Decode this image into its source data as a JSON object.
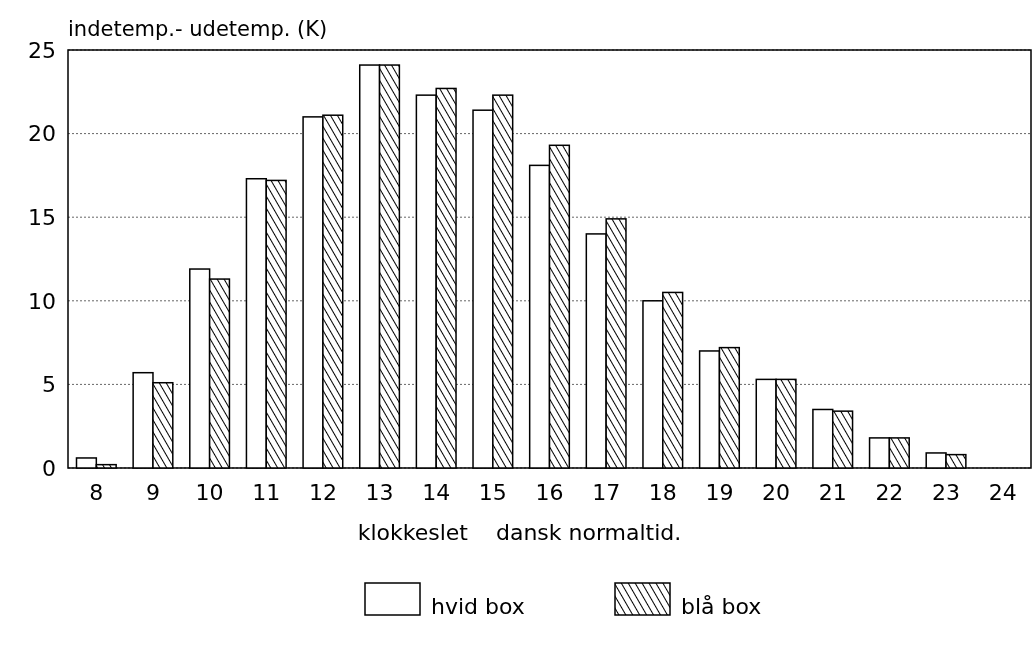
{
  "chart_data": {
    "type": "bar",
    "ylabel": "indetemp.- udetemp. (K)",
    "xlabel": "klokkeslet    dansk normaltid.",
    "categories": [
      "8",
      "9",
      "10",
      "11",
      "12",
      "13",
      "14",
      "15",
      "16",
      "17",
      "18",
      "19",
      "20",
      "21",
      "22",
      "23",
      "24"
    ],
    "series": [
      {
        "name": "hvid box",
        "color": "#ffffff",
        "values": [
          0.6,
          5.7,
          11.9,
          17.3,
          21.0,
          24.1,
          22.3,
          21.4,
          18.1,
          14.0,
          10.0,
          7.0,
          5.3,
          3.5,
          1.8,
          0.9,
          null
        ]
      },
      {
        "name": "blå box",
        "color": "#000000",
        "values": [
          0.2,
          5.1,
          11.3,
          17.2,
          21.1,
          24.1,
          22.7,
          22.3,
          19.3,
          14.9,
          10.5,
          7.2,
          5.3,
          3.4,
          1.8,
          0.8,
          null
        ]
      }
    ],
    "ylim": [
      0,
      25
    ],
    "yticks": [
      0,
      5,
      10,
      15,
      20,
      25
    ],
    "grid": "y",
    "legend": "bottom"
  }
}
